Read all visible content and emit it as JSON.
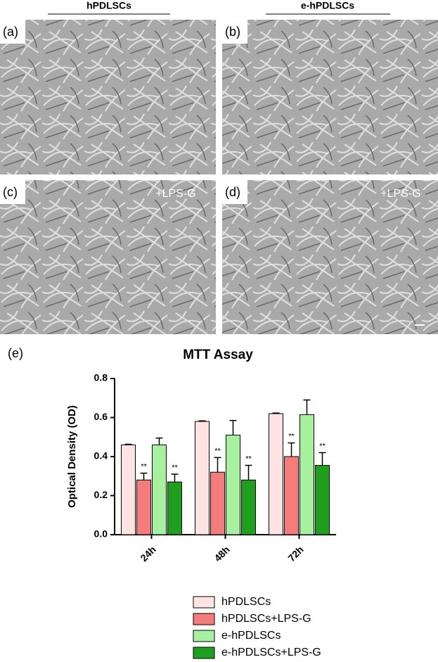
{
  "column_headers": [
    "hPDLSCs",
    "e-hPDLSCs"
  ],
  "panels": [
    {
      "label": "(a)"
    },
    {
      "label": "(b)"
    },
    {
      "label": "(c)",
      "note": "+LPS-G"
    },
    {
      "label": "(d)",
      "note": "+LPS-G"
    }
  ],
  "chart_data": {
    "type": "bar",
    "panel_label": "(e)",
    "title": "MTT Assay",
    "y_label": "Optical Density (OD)",
    "categories": [
      "24h",
      "48h",
      "72h"
    ],
    "ylim": [
      0,
      0.8
    ],
    "yticks": [
      {
        "value": 0,
        "label": "0.0"
      },
      0.2,
      0.4,
      0.6,
      0.8
    ],
    "series": [
      {
        "name": "hPDLSCs",
        "color": "#fde3e3",
        "values": [
          0.46,
          0.58,
          0.62
        ],
        "errors": [
          0.003,
          0.003,
          0.003
        ]
      },
      {
        "name": "hPDLSCs+LPS-G",
        "color": "#f47c7c",
        "values": [
          0.28,
          0.32,
          0.4
        ],
        "errors": [
          0.035,
          0.075,
          0.07
        ],
        "significance": [
          "**",
          "**",
          "**"
        ]
      },
      {
        "name": "e-hPDLSCs",
        "color": "#a6f0a0",
        "values": [
          0.46,
          0.51,
          0.615
        ],
        "errors": [
          0.035,
          0.075,
          0.075
        ]
      },
      {
        "name": "e-hPDLSCs+LPS-G",
        "color": "#1f9e1f",
        "values": [
          0.27,
          0.28,
          0.355
        ],
        "errors": [
          0.04,
          0.075,
          0.065
        ],
        "significance": [
          "**",
          "**",
          "**"
        ]
      }
    ]
  }
}
